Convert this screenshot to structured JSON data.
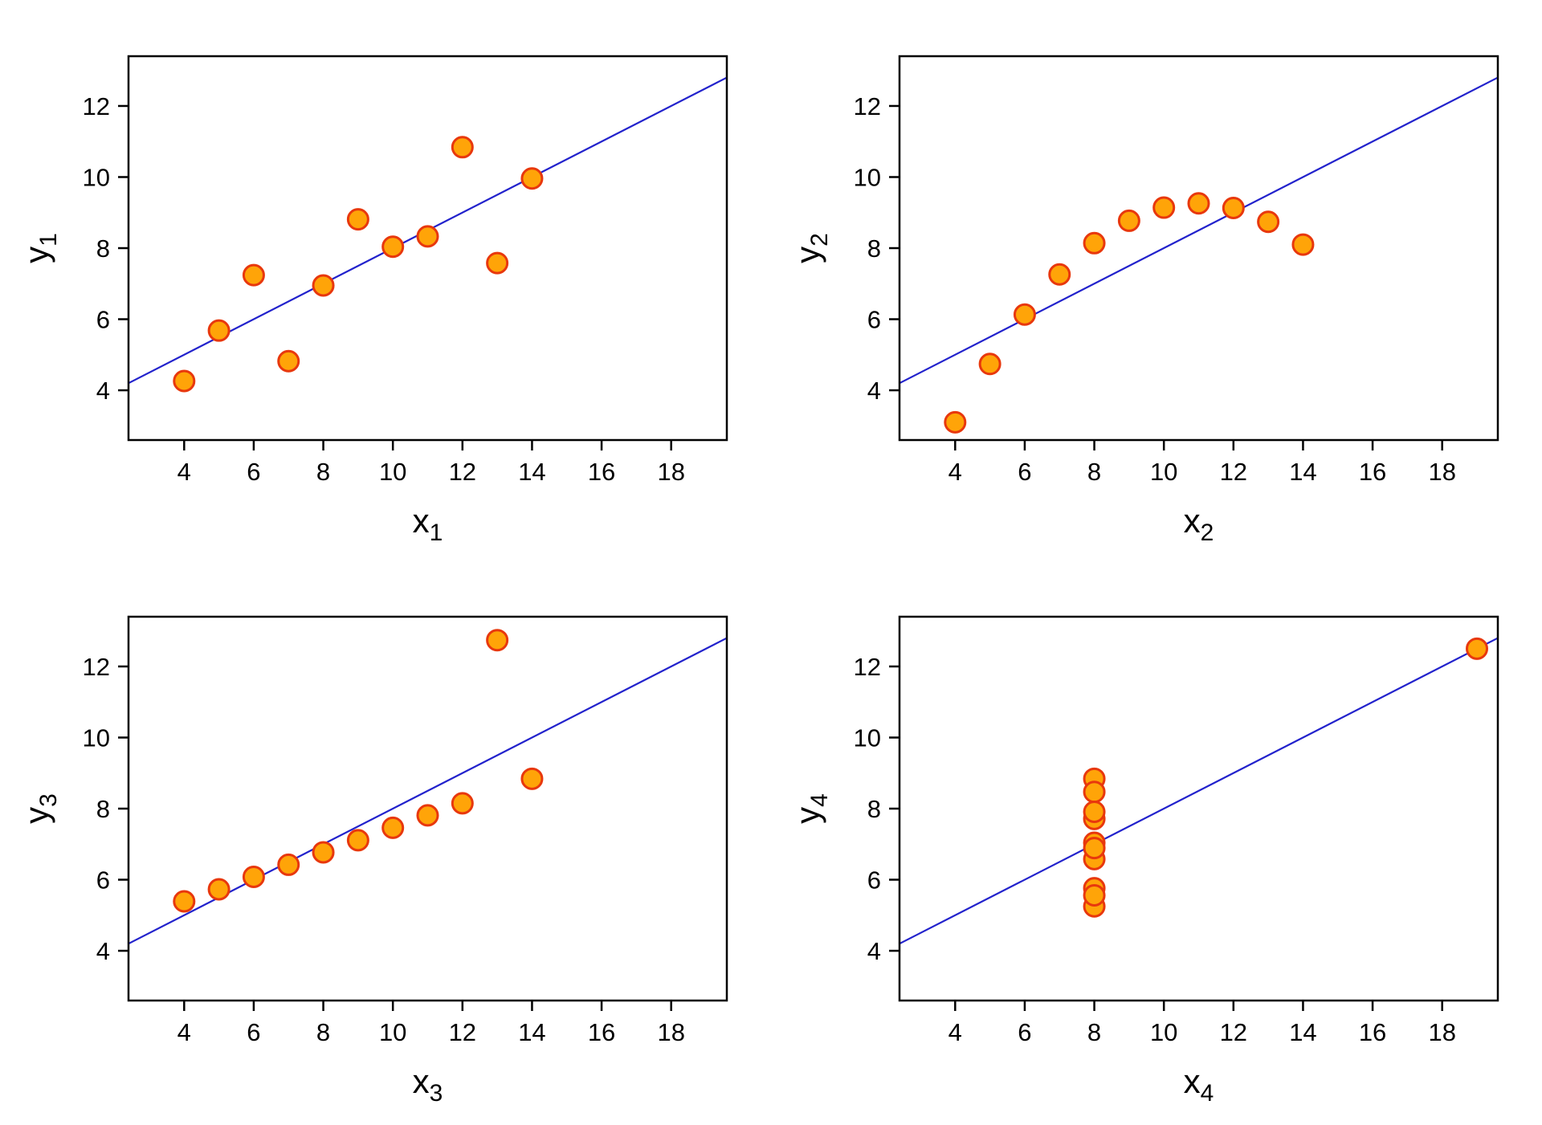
{
  "figure": {
    "background": "#FFFFFF",
    "axis_color": "#000000",
    "line_color": "#2222CC",
    "point_fill": "#FFA408",
    "point_stroke": "#E8380D"
  },
  "chart_data": [
    {
      "type": "scatter",
      "panel": 1,
      "title": "",
      "xlabel": "x",
      "xlabel_sub": "1",
      "ylabel": "y",
      "ylabel_sub": "1",
      "xlim": [
        2.4,
        19.6
      ],
      "ylim": [
        2.6,
        13.4
      ],
      "x_ticks": [
        4,
        6,
        8,
        10,
        12,
        14,
        16,
        18
      ],
      "y_ticks": [
        4,
        6,
        8,
        10,
        12
      ],
      "grid": false,
      "legend": "none",
      "points": {
        "x": [
          10,
          8,
          13,
          9,
          11,
          14,
          6,
          4,
          12,
          7,
          5
        ],
        "y": [
          8.04,
          6.95,
          7.58,
          8.81,
          8.33,
          9.96,
          7.24,
          4.26,
          10.84,
          4.82,
          5.68
        ]
      },
      "fit_line": {
        "intercept": 3.0,
        "slope": 0.5
      }
    },
    {
      "type": "scatter",
      "panel": 2,
      "title": "",
      "xlabel": "x",
      "xlabel_sub": "2",
      "ylabel": "y",
      "ylabel_sub": "2",
      "xlim": [
        2.4,
        19.6
      ],
      "ylim": [
        2.6,
        13.4
      ],
      "x_ticks": [
        4,
        6,
        8,
        10,
        12,
        14,
        16,
        18
      ],
      "y_ticks": [
        4,
        6,
        8,
        10,
        12
      ],
      "grid": false,
      "legend": "none",
      "points": {
        "x": [
          10,
          8,
          13,
          9,
          11,
          14,
          6,
          4,
          12,
          7,
          5
        ],
        "y": [
          9.14,
          8.14,
          8.74,
          8.77,
          9.26,
          8.1,
          6.13,
          3.1,
          9.13,
          7.26,
          4.74
        ]
      },
      "fit_line": {
        "intercept": 3.0,
        "slope": 0.5
      }
    },
    {
      "type": "scatter",
      "panel": 3,
      "title": "",
      "xlabel": "x",
      "xlabel_sub": "3",
      "ylabel": "y",
      "ylabel_sub": "3",
      "xlim": [
        2.4,
        19.6
      ],
      "ylim": [
        2.6,
        13.4
      ],
      "x_ticks": [
        4,
        6,
        8,
        10,
        12,
        14,
        16,
        18
      ],
      "y_ticks": [
        4,
        6,
        8,
        10,
        12
      ],
      "grid": false,
      "legend": "none",
      "points": {
        "x": [
          10,
          8,
          13,
          9,
          11,
          14,
          6,
          4,
          12,
          7,
          5
        ],
        "y": [
          7.46,
          6.77,
          12.74,
          7.11,
          7.81,
          8.84,
          6.08,
          5.39,
          8.15,
          6.42,
          5.73
        ]
      },
      "fit_line": {
        "intercept": 3.0,
        "slope": 0.5
      }
    },
    {
      "type": "scatter",
      "panel": 4,
      "title": "",
      "xlabel": "x",
      "xlabel_sub": "4",
      "ylabel": "y",
      "ylabel_sub": "4",
      "xlim": [
        2.4,
        19.6
      ],
      "ylim": [
        2.6,
        13.4
      ],
      "x_ticks": [
        4,
        6,
        8,
        10,
        12,
        14,
        16,
        18
      ],
      "y_ticks": [
        4,
        6,
        8,
        10,
        12
      ],
      "grid": false,
      "legend": "none",
      "points": {
        "x": [
          8,
          8,
          8,
          8,
          8,
          8,
          8,
          19,
          8,
          8,
          8
        ],
        "y": [
          6.58,
          5.76,
          7.71,
          8.84,
          8.47,
          7.04,
          5.25,
          12.5,
          5.56,
          7.91,
          6.89
        ]
      },
      "fit_line": {
        "intercept": 3.0,
        "slope": 0.5
      }
    }
  ]
}
